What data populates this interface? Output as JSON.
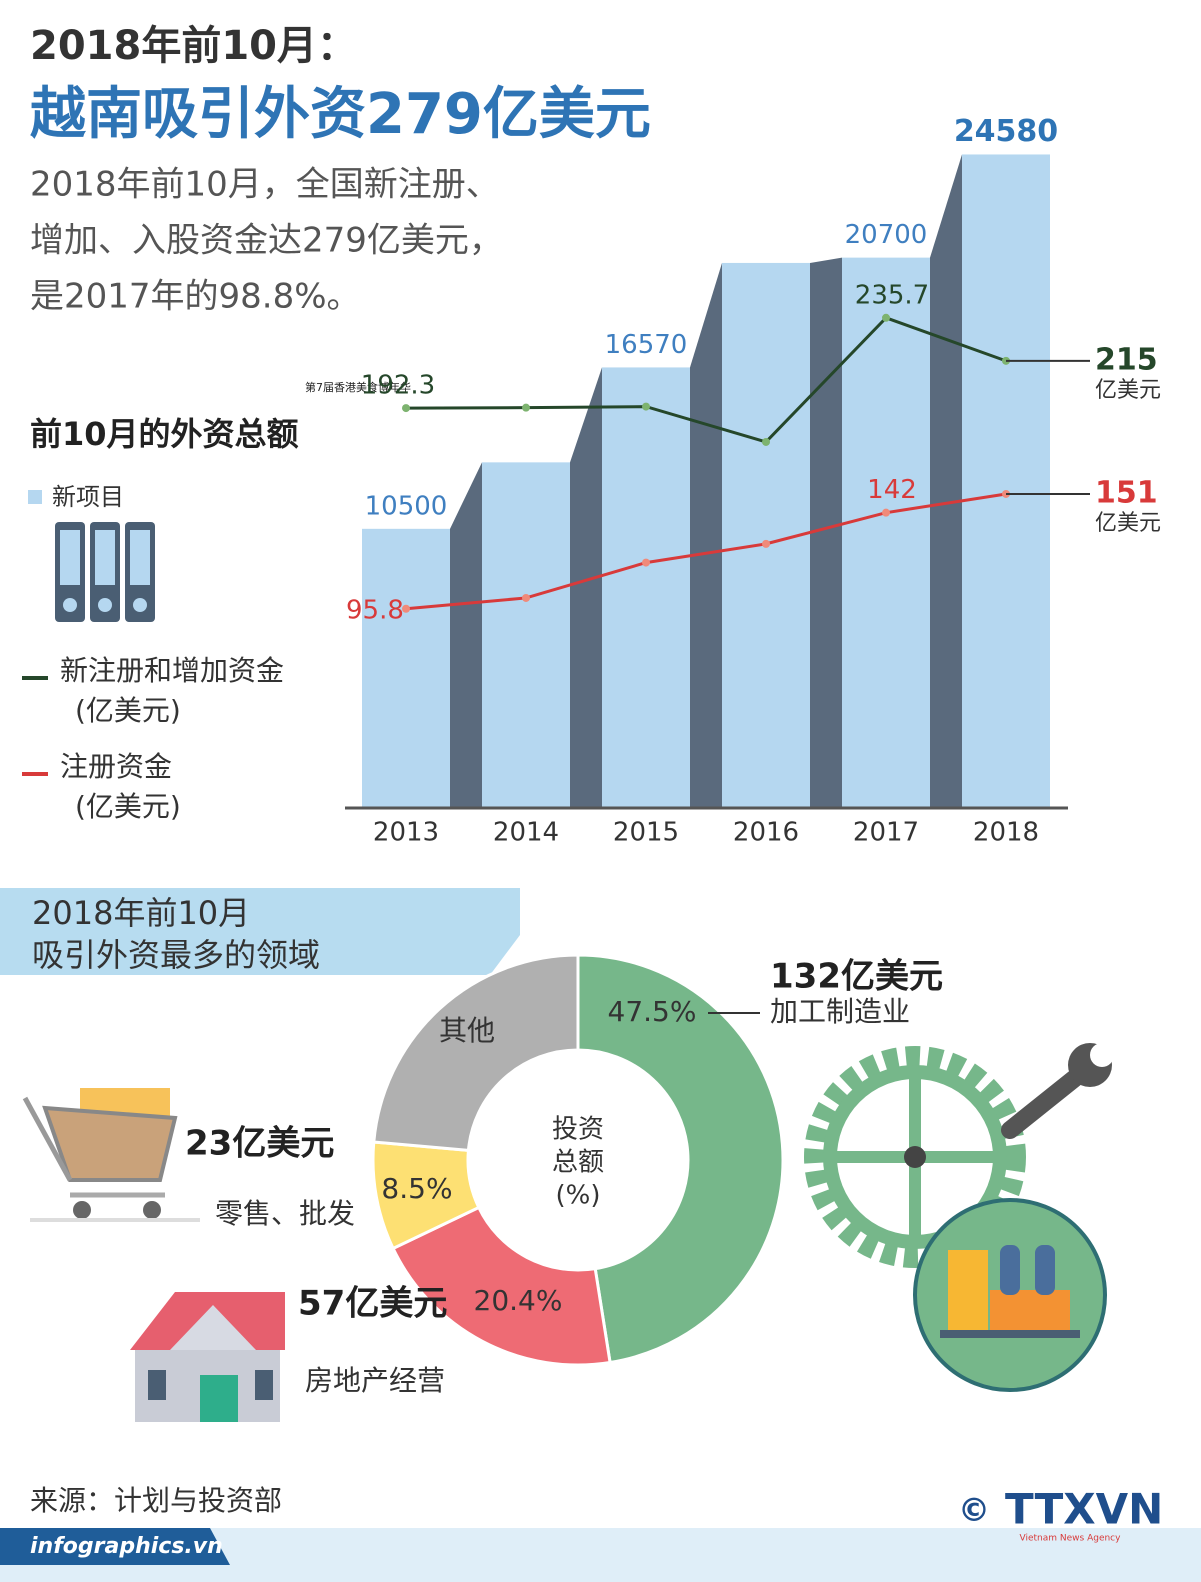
{
  "header": {
    "title": "2018年前10月：",
    "headline": "越南吸引外资279亿美元",
    "summary": [
      "2018年前10月，全国新注册、",
      "增加、入股资金达279亿美元，",
      "是2017年的98.8%。"
    ],
    "watermark": "第7届香港美食博年华"
  },
  "chart_data": [
    {
      "type": "bar-line",
      "title": "前10月的外资总额",
      "categories": [
        "2013",
        "2014",
        "2015",
        "2016",
        "2017",
        "2018"
      ],
      "ylim": [
        0,
        25500
      ],
      "y2lim": [
        0,
        326
      ],
      "series": [
        {
          "name": "新项目",
          "color": "#b5d7f0",
          "values": [
            10500,
            13000,
            16570,
            20500,
            20700,
            24580
          ],
          "value_labels": [
            "10500",
            null,
            "16570",
            null,
            "20700",
            "24580"
          ]
        },
        {
          "name": "新注册和增加资金",
          "note": "(亿美元)",
          "color": "#25472a",
          "axis": "y2",
          "values": [
            192.3,
            192.5,
            193,
            176,
            235.7,
            215
          ],
          "value_labels": [
            "192.3",
            null,
            null,
            null,
            "235.7",
            "215"
          ],
          "end_label": "亿美元"
        },
        {
          "name": "注册资金",
          "note": "(亿美元)",
          "color": "#d83a3a",
          "axis": "y2",
          "values": [
            95.8,
            101,
            118,
            127,
            142,
            151
          ],
          "value_labels": [
            "95.8",
            null,
            null,
            null,
            "142",
            "151"
          ],
          "end_label": "亿美元"
        }
      ]
    },
    {
      "type": "donut",
      "title": [
        "2018年前10月",
        "吸引外资最多的领域"
      ],
      "center_label": [
        "投资",
        "总额",
        "(%)"
      ],
      "categories": [
        "加工制造业",
        "房地产经营",
        "零售、批发",
        "其他"
      ],
      "values": [
        47.5,
        20.4,
        8.5,
        23.6
      ],
      "value_labels": [
        "47.5%",
        "20.4%",
        "8.5%",
        null
      ],
      "amounts": [
        132,
        57,
        23,
        null
      ],
      "amount_labels": [
        "132亿美元",
        "57亿美元",
        "23亿美元",
        null
      ],
      "colors": [
        "#76b78a",
        "#ee6b74",
        "#fde073",
        "#b0b0b0"
      ]
    }
  ],
  "footer": {
    "source": "来源：计划与投资部",
    "site": "infographics.vn",
    "copyright": "©",
    "agency": "TTXVN",
    "agency_en": "Vietnam News Agency"
  }
}
